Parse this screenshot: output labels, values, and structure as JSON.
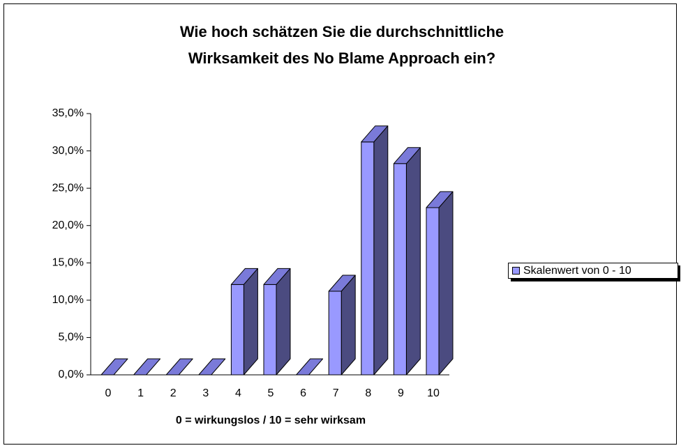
{
  "chart_data": {
    "type": "bar3d",
    "title": [
      "Wie hoch schätzen Sie die durchschnittliche",
      "Wirksamkeit des No Blame Approach ein?"
    ],
    "x_label": "0 = wirkungslos / 10 = sehr wirksam",
    "categories": [
      "0",
      "1",
      "2",
      "3",
      "4",
      "5",
      "6",
      "7",
      "8",
      "9",
      "10"
    ],
    "series": [
      {
        "name": "Skalenwert von 0 - 10",
        "color": "#9999ff",
        "values": [
          0,
          0,
          0,
          0,
          12.1,
          12.1,
          0,
          11.2,
          31.2,
          28.3,
          22.4
        ]
      }
    ],
    "ylim": [
      0,
      35
    ],
    "yticks": [
      {
        "value": 0,
        "label": "0,0%"
      },
      {
        "value": 5,
        "label": "5,0%"
      },
      {
        "value": 10,
        "label": "10,0%"
      },
      {
        "value": 15,
        "label": "15,0%"
      },
      {
        "value": 20,
        "label": "20,0%"
      },
      {
        "value": 25,
        "label": "25,0%"
      },
      {
        "value": 30,
        "label": "30,0%"
      },
      {
        "value": 35,
        "label": "35,0%"
      }
    ],
    "legend": "right"
  }
}
